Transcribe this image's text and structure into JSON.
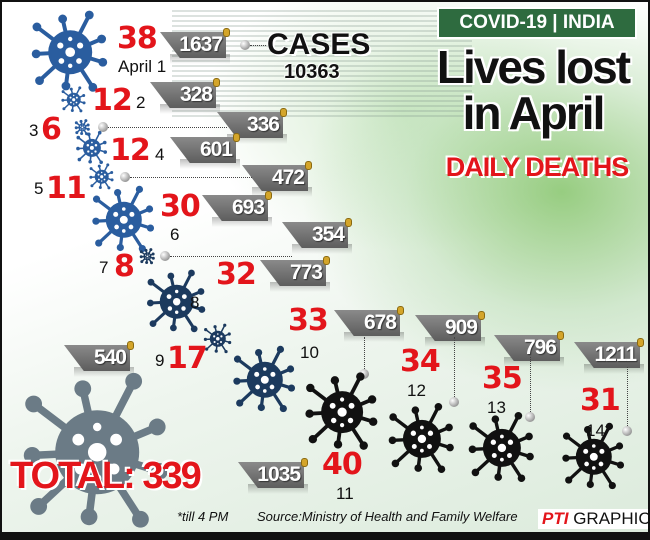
{
  "header": {
    "badge": "COVID-19 | INDIA",
    "title_line1": "Lives lost",
    "title_line2": "in April",
    "subtitle": "DAILY DEATHS"
  },
  "cases": {
    "label": "CASES",
    "value": "10363"
  },
  "total": "TOTAL: 339",
  "footnote": "*till 4 PM",
  "source": "Source:Ministry of Health and Family Welfare",
  "credit": {
    "logo": "PTI",
    "label": "GRAPHICS"
  },
  "colors": {
    "deaths": "#e3151b",
    "header_bg": "#2e6b3f",
    "virus_early": "#2a5d9f",
    "virus_mid": "#1c3a5e",
    "virus_late": "#111111"
  },
  "chart_data": {
    "type": "table",
    "title": "Lives lost in April",
    "subtitle": "DAILY DEATHS",
    "day_labels": [
      "April 1",
      "2",
      "3",
      "4",
      "5",
      "6",
      "7",
      "8",
      "9",
      "10",
      "11",
      "12",
      "13",
      "14*"
    ],
    "deaths": [
      38,
      12,
      6,
      12,
      11,
      30,
      8,
      32,
      17,
      33,
      40,
      34,
      35,
      31
    ],
    "cases": [
      1637,
      328,
      336,
      601,
      472,
      693,
      354,
      773,
      540,
      678,
      1035,
      909,
      796,
      1211
    ],
    "total_deaths": 339,
    "total_cases": 10363
  }
}
